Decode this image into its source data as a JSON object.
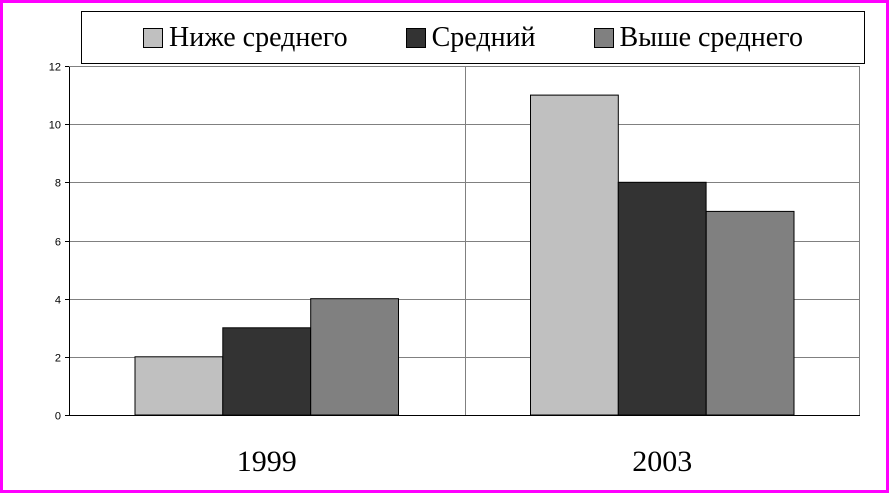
{
  "chart_data": {
    "type": "bar",
    "categories": [
      "1999",
      "2003"
    ],
    "series": [
      {
        "name": "Ниже среднего",
        "values": [
          2,
          11
        ],
        "color": "#c0c0c0"
      },
      {
        "name": "Средний",
        "values": [
          3,
          8
        ],
        "color": "#333333"
      },
      {
        "name": "Выше среднего",
        "values": [
          4,
          7
        ],
        "color": "#808080"
      }
    ],
    "ylim": [
      0,
      12
    ],
    "yticks": [
      "0",
      "2",
      "4",
      "6",
      "8",
      "10",
      "12"
    ],
    "grid": true,
    "legend_position": "top",
    "title": "",
    "xlabel": "",
    "ylabel": ""
  },
  "colors": {
    "frame_border": "#ff00ff",
    "gridline": "#808080"
  }
}
